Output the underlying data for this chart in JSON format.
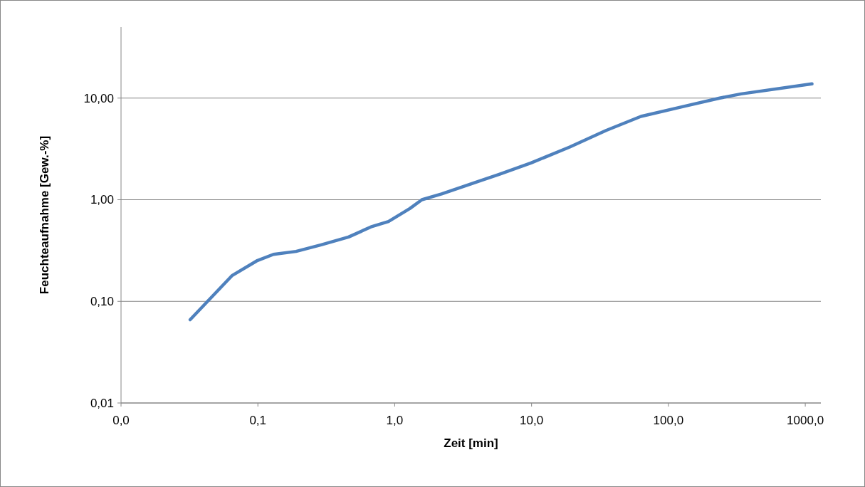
{
  "chart_data": {
    "type": "line",
    "xlabel": "Zeit [min]",
    "ylabel": "Feuchteaufnahme [Gew.-%]",
    "log": "xy",
    "grid": "y",
    "marker": "none",
    "line_style": "solid",
    "xlim": [
      0.01,
      1300
    ],
    "ylim": [
      0.01,
      50
    ],
    "xticks": [
      {
        "value": 0.01,
        "label": "0,0"
      },
      {
        "value": 0.1,
        "label": "0,1"
      },
      {
        "value": 1,
        "label": "1,0"
      },
      {
        "value": 10,
        "label": "10,0"
      },
      {
        "value": 100,
        "label": "100,0"
      },
      {
        "value": 1000,
        "label": "1000,0"
      }
    ],
    "yticks": [
      {
        "value": 0.01,
        "label": "0,01"
      },
      {
        "value": 0.1,
        "label": "0,10"
      },
      {
        "value": 1,
        "label": "1,00"
      },
      {
        "value": 10,
        "label": "10,00"
      }
    ],
    "series": [
      {
        "color": "#4f81bd",
        "x": [
          0.032,
          0.065,
          0.098,
          0.13,
          0.19,
          0.29,
          0.46,
          0.67,
          0.9,
          1.29,
          1.58,
          2.2,
          3.6,
          5.8,
          9.9,
          19,
          35,
          63,
          130,
          237,
          340,
          1120
        ],
        "values": [
          0.066,
          0.18,
          0.25,
          0.29,
          0.31,
          0.36,
          0.43,
          0.54,
          0.61,
          0.82,
          1.0,
          1.14,
          1.43,
          1.78,
          2.3,
          3.3,
          4.8,
          6.6,
          8.3,
          10,
          11,
          13.8
        ]
      }
    ]
  }
}
